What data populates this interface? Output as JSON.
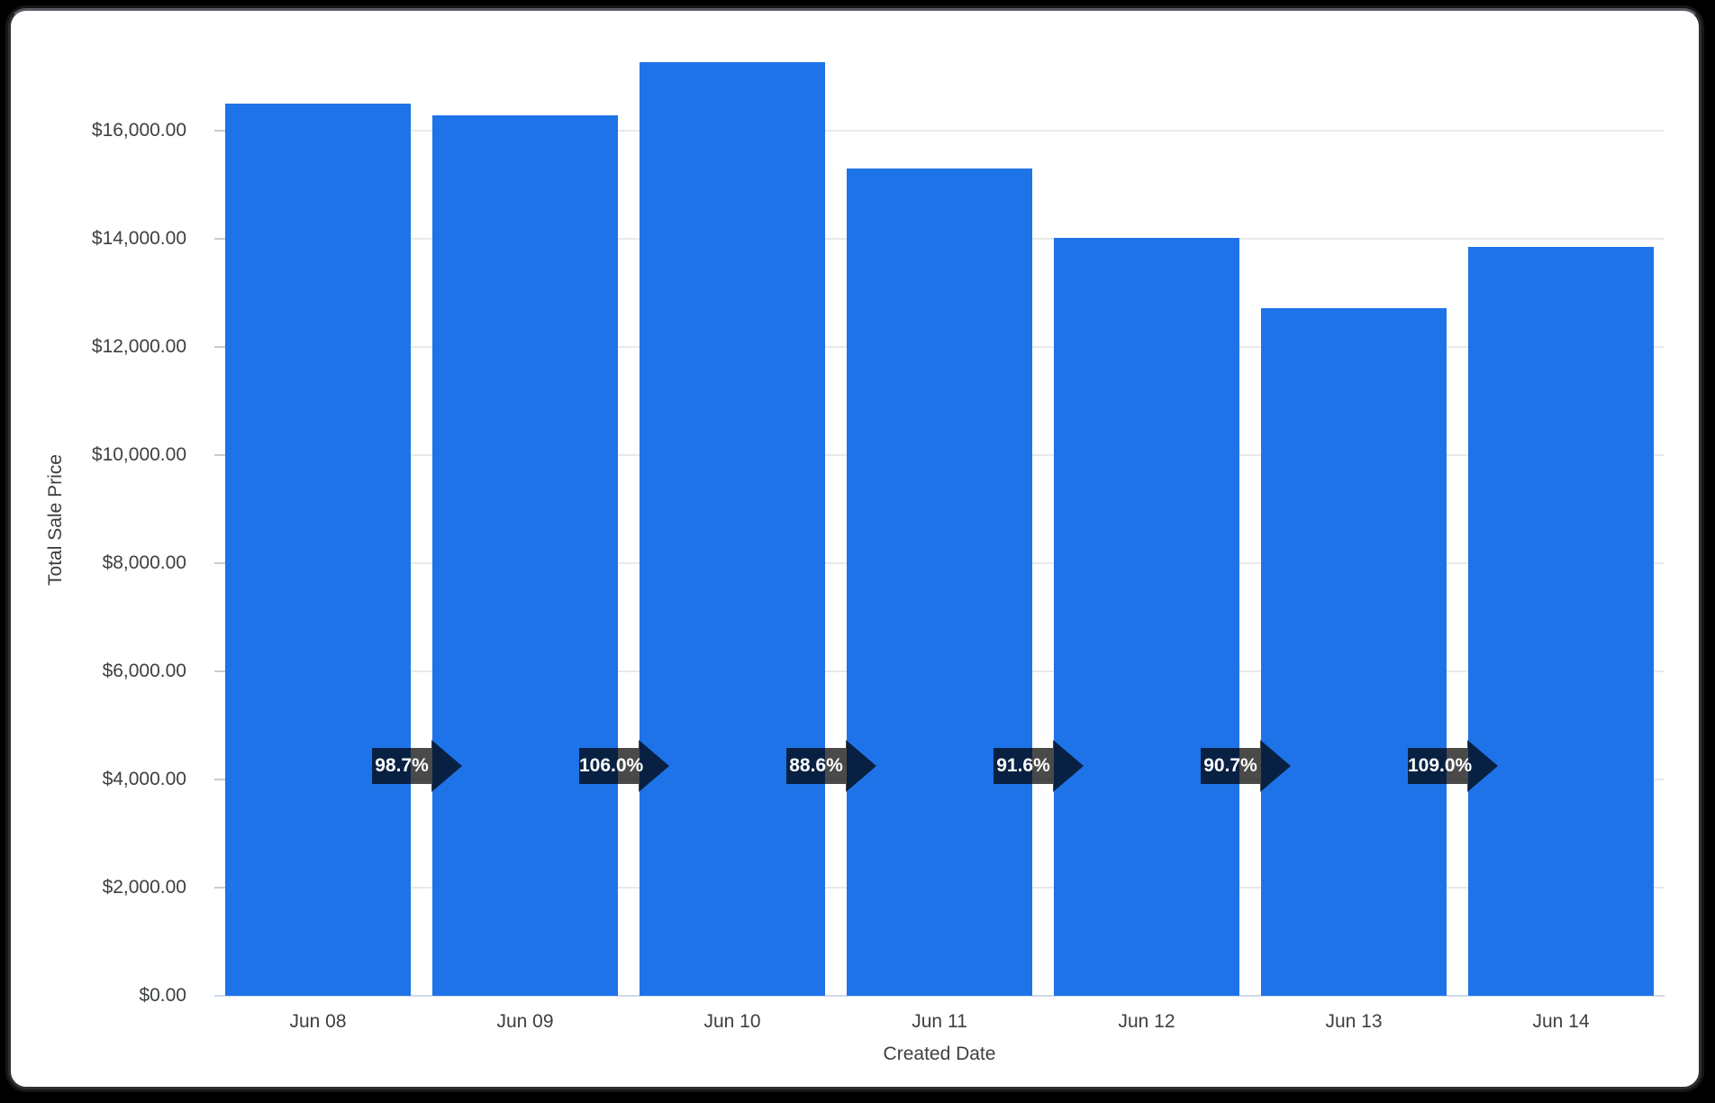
{
  "frame": {
    "background_color": "#000000",
    "card_color": "#ffffff",
    "border_color": "#2c3033"
  },
  "chart_data": {
    "type": "bar",
    "title": "",
    "xlabel": "Created Date",
    "ylabel": "Total Sale Price",
    "categories": [
      "Jun 08",
      "Jun 09",
      "Jun 10",
      "Jun 11",
      "Jun 12",
      "Jun 13",
      "Jun 14"
    ],
    "series": [
      {
        "name": "Total Sale Price",
        "values": [
          16500,
          16290,
          17270,
          15300,
          14010,
          12710,
          13850
        ]
      }
    ],
    "pct_change_labels": [
      "98.7%",
      "106.0%",
      "88.6%",
      "91.6%",
      "90.7%",
      "109.0%"
    ],
    "y_ticks": [
      {
        "value": 0,
        "label": "$0.00"
      },
      {
        "value": 2000,
        "label": "$2,000.00"
      },
      {
        "value": 4000,
        "label": "$4,000.00"
      },
      {
        "value": 6000,
        "label": "$6,000.00"
      },
      {
        "value": 8000,
        "label": "$8,000.00"
      },
      {
        "value": 10000,
        "label": "$10,000.00"
      },
      {
        "value": 12000,
        "label": "$12,000.00"
      },
      {
        "value": 14000,
        "label": "$14,000.00"
      },
      {
        "value": 16000,
        "label": "$16,000.00"
      }
    ],
    "ylim": [
      0,
      17580
    ],
    "grid": true,
    "legend": "none",
    "bar_color": "#1e73e8",
    "arrow_color": "rgba(0,0,0,0.71)",
    "axis_text_color": "#3c4043",
    "gridline_color": "#e9e9e9"
  }
}
